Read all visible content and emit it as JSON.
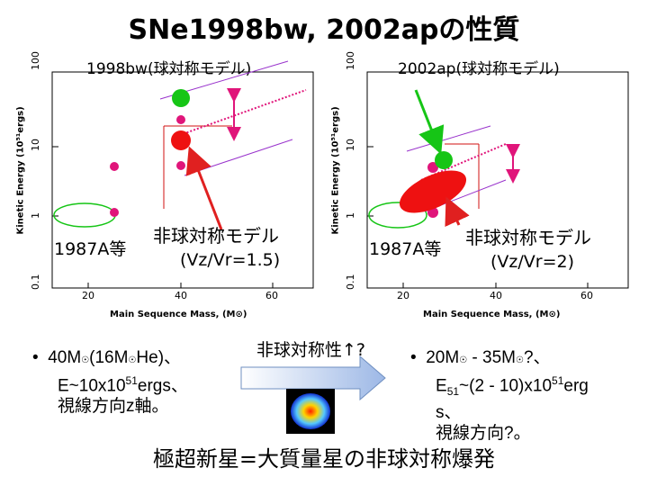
{
  "title": "SNe1998bw, 2002apの性質",
  "left_panel": {
    "header": "1998bw(球対称モデル)",
    "yaxis_label": "Kinetic Energy (10⁵¹ergs)",
    "xaxis_label": "Main Sequence Mass, (M⊙)",
    "xticks": [
      "20",
      "40",
      "60"
    ],
    "yticks": [
      "100",
      "10",
      "1",
      "0.1"
    ],
    "label_1987a": "1987A等",
    "asym_label_line1": "非球対称モデル",
    "asym_label_line2": "(Vz/Vr=1.5)"
  },
  "right_panel": {
    "header": "2002ap(球対称モデル)",
    "yaxis_label": "Kinetic Energy (10⁵¹ergs)",
    "xaxis_label": "Main Sequence Mass, (M⊙)",
    "xticks": [
      "20",
      "40",
      "60"
    ],
    "yticks": [
      "100",
      "10",
      "1",
      "0.1"
    ],
    "label_1987a": "1987A等",
    "asym_label_line1": "非球対称モデル",
    "asym_label_line2": "(Vz/Vr=2)"
  },
  "bullet_left": {
    "line1": "40M",
    "line1b": "(16M",
    "line1c": "He)、",
    "line2a": "E~10x10",
    "line2sup": "51",
    "line2b": "ergs、",
    "line3": "視線方向z軸。"
  },
  "arrow_label": "非球対称性↑?",
  "bullet_right": {
    "line1": "20M",
    "line1b": " - 35M",
    "line1c": "?、",
    "line2a": "E",
    "line2sub": "51",
    "line2b": "~(2 - 10)x10",
    "line2sup": "51",
    "line2c": "erg",
    "line3": "s、",
    "line4": "視線方向?。"
  },
  "conclusion": "極超新星=大質量星の非球対称爆発",
  "colors": {
    "green": "#16c516",
    "red": "#ee1111",
    "magenta": "#e0157a",
    "purple": "#9933cc",
    "arrow_red": "#e02020"
  }
}
